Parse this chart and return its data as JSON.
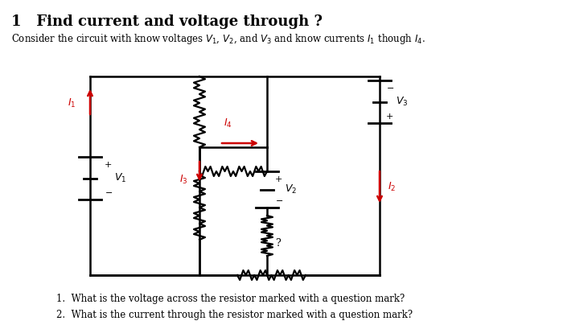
{
  "title": "1   Find current and voltage through ?",
  "subtitle": "Consider the circuit with know voltages $V_1$, $V_2$, and $V_3$ and know currents $I_1$ though $I_4$.",
  "question1": "1.  What is the voltage across the resistor marked with a question mark?",
  "question2": "2.  What is the current through the resistor marked with a question mark?",
  "bg_color": "#ffffff",
  "line_color": "#000000",
  "arrow_color": "#cc0000",
  "lw": 1.8
}
